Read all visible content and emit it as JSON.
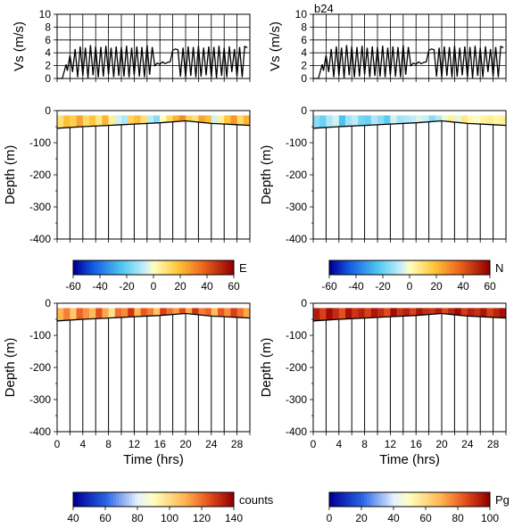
{
  "figure_label": "b24",
  "chart_data": [
    {
      "id": "vs-left",
      "type": "line",
      "title": "",
      "ylabel": "Vs (m/s)",
      "xlim": [
        0,
        30
      ],
      "ylim": [
        0,
        10
      ],
      "yticks": [
        0,
        2,
        4,
        6,
        8,
        10
      ],
      "grid": true,
      "series": [
        {
          "x": [
            0,
            0.8,
            1.4,
            1.6,
            2.0,
            2.4,
            2.8,
            3.2,
            3.6,
            4.0,
            4.4,
            4.8,
            5.2,
            5.6,
            6.0,
            6.4,
            6.8,
            7.2,
            7.6,
            8.0,
            8.4,
            8.8,
            9.2,
            9.6,
            10.0,
            10.4,
            10.8,
            11.2,
            11.6,
            12.0,
            12.4,
            12.8,
            13.2,
            13.6,
            14.0,
            14.4,
            14.8,
            15.2,
            15.6,
            16.0,
            16.4,
            16.8,
            17.2,
            17.6,
            18.0,
            18.4,
            18.8,
            19.2,
            19.6,
            20.0,
            20.4,
            20.8,
            21.2,
            21.6,
            22.0,
            22.4,
            22.8,
            23.2,
            23.6,
            24.0,
            24.4,
            24.8,
            25.2,
            25.6,
            26.0,
            26.4,
            26.8,
            27.2,
            27.6,
            28.0,
            28.4,
            28.8,
            29.2,
            29.6
          ],
          "y": [
            0,
            0,
            2.2,
            1.2,
            3.6,
            1.0,
            4.6,
            0.2,
            5.0,
            0.4,
            4.8,
            0.1,
            5.2,
            0.5,
            5.0,
            0.2,
            4.9,
            0.3,
            5.1,
            0.6,
            4.8,
            0.2,
            5.0,
            0.4,
            4.9,
            0.3,
            5.1,
            0.2,
            4.8,
            0.5,
            5.0,
            0.3,
            4.9,
            0.2,
            5.2,
            0.6,
            4.9,
            2.0,
            2.4,
            2.2,
            2.6,
            2.3,
            2.5,
            2.6,
            4.4,
            4.6,
            4.5,
            0.3,
            4.8,
            0.2,
            5.0,
            0.4,
            4.9,
            0.2,
            5.1,
            0.3,
            4.8,
            0.5,
            5.0,
            0.2,
            4.9,
            0.1,
            5.1,
            0.4,
            4.8,
            0.2,
            5.0,
            1.0,
            4.6,
            0.3,
            4.9,
            0.2,
            5.0,
            4.8
          ]
        }
      ]
    },
    {
      "id": "vs-right",
      "type": "line",
      "title": "",
      "ylabel": "Vs (m/s)",
      "xlim": [
        0,
        30
      ],
      "ylim": [
        0,
        10
      ],
      "yticks": [
        0,
        2,
        4,
        6,
        8,
        10
      ],
      "grid": true,
      "series": [
        {
          "x": [
            0,
            0.8,
            1.4,
            1.6,
            2.0,
            2.4,
            2.8,
            3.2,
            3.6,
            4.0,
            4.4,
            4.8,
            5.2,
            5.6,
            6.0,
            6.4,
            6.8,
            7.2,
            7.6,
            8.0,
            8.4,
            8.8,
            9.2,
            9.6,
            10.0,
            10.4,
            10.8,
            11.2,
            11.6,
            12.0,
            12.4,
            12.8,
            13.2,
            13.6,
            14.0,
            14.4,
            14.8,
            15.2,
            15.6,
            16.0,
            16.4,
            16.8,
            17.2,
            17.6,
            18.0,
            18.4,
            18.8,
            19.2,
            19.6,
            20.0,
            20.4,
            20.8,
            21.2,
            21.6,
            22.0,
            22.4,
            22.8,
            23.2,
            23.6,
            24.0,
            24.4,
            24.8,
            25.2,
            25.6,
            26.0,
            26.4,
            26.8,
            27.2,
            27.6,
            28.0,
            28.4,
            28.8,
            29.2,
            29.6
          ],
          "y": [
            0,
            0,
            2.2,
            1.2,
            3.6,
            1.0,
            4.6,
            0.2,
            5.0,
            0.4,
            4.8,
            0.1,
            5.2,
            0.5,
            5.0,
            0.2,
            4.9,
            0.3,
            5.1,
            0.6,
            4.8,
            0.2,
            5.0,
            0.4,
            4.9,
            0.3,
            5.1,
            0.2,
            4.8,
            0.5,
            5.0,
            0.3,
            4.9,
            0.2,
            5.2,
            0.6,
            4.9,
            2.0,
            2.4,
            2.2,
            2.6,
            2.3,
            2.5,
            2.6,
            4.4,
            4.6,
            4.5,
            0.3,
            4.8,
            0.2,
            5.0,
            0.4,
            4.9,
            0.2,
            5.1,
            0.3,
            4.8,
            0.5,
            5.0,
            0.2,
            4.9,
            0.1,
            5.1,
            0.4,
            4.8,
            0.2,
            5.0,
            1.0,
            4.6,
            0.3,
            4.9,
            0.2,
            5.0,
            4.8
          ]
        }
      ]
    },
    {
      "id": "depth-E",
      "type": "heatmap",
      "ylabel": "Depth (m)",
      "xlim": [
        0,
        30
      ],
      "ylim": [
        -400,
        0
      ],
      "yticks": [
        0,
        -100,
        -200,
        -300,
        -400
      ],
      "vertical_lines_x": [
        0,
        2,
        4,
        6,
        8,
        10,
        12,
        14,
        16,
        18,
        20,
        22,
        24,
        26,
        28
      ],
      "bottom_depth": {
        "x": [
          0,
          4,
          8,
          12,
          16,
          20,
          24,
          28,
          30
        ],
        "y": [
          -55,
          -50,
          -46,
          -42,
          -38,
          -32,
          -40,
          -44,
          -46
        ]
      },
      "band_top": -15,
      "color_variable": "E",
      "colorbar": {
        "label": "E",
        "range": [
          -60,
          60
        ],
        "ticks": [
          -60,
          -40,
          -20,
          0,
          20,
          40,
          60
        ]
      },
      "column_values": [
        10,
        20,
        15,
        25,
        12,
        18,
        8,
        22,
        5,
        -5,
        -10,
        14,
        20,
        10,
        -8,
        -15,
        0,
        12,
        22,
        30,
        15,
        10,
        25,
        20,
        -5,
        5,
        18,
        28,
        12,
        22
      ]
    },
    {
      "id": "depth-N",
      "type": "heatmap",
      "ylabel": "Depth (m)",
      "xlim": [
        0,
        30
      ],
      "ylim": [
        -400,
        0
      ],
      "yticks": [
        0,
        -100,
        -200,
        -300,
        -400
      ],
      "vertical_lines_x": [
        0,
        2,
        4,
        6,
        8,
        10,
        12,
        14,
        16,
        18,
        20,
        22,
        24,
        26,
        28
      ],
      "bottom_depth": {
        "x": [
          0,
          4,
          8,
          12,
          16,
          20,
          24,
          28,
          30
        ],
        "y": [
          -55,
          -50,
          -46,
          -42,
          -38,
          -32,
          -40,
          -44,
          -46
        ]
      },
      "band_top": -15,
      "color_variable": "N",
      "colorbar": {
        "label": "N",
        "range": [
          -60,
          60
        ],
        "ticks": [
          -60,
          -40,
          -20,
          0,
          20,
          40,
          60
        ]
      },
      "column_values": [
        -15,
        -20,
        -10,
        -5,
        -25,
        -12,
        -8,
        -18,
        -20,
        -10,
        -15,
        -22,
        -5,
        -12,
        -10,
        -8,
        -4,
        -6,
        -15,
        -10,
        -2,
        5,
        -3,
        8,
        2,
        -1,
        4,
        6,
        3,
        5
      ]
    },
    {
      "id": "depth-counts",
      "type": "heatmap",
      "ylabel": "Depth (m)",
      "xlabel": "Time (hrs)",
      "xlim": [
        0,
        30
      ],
      "xticks": [
        0,
        4,
        8,
        12,
        16,
        20,
        24,
        28
      ],
      "ylim": [
        -400,
        0
      ],
      "yticks": [
        0,
        -100,
        -200,
        -300,
        -400
      ],
      "vertical_lines_x": [
        0,
        2,
        4,
        6,
        8,
        10,
        12,
        14,
        16,
        18,
        20,
        22,
        24,
        26,
        28
      ],
      "bottom_depth": {
        "x": [
          0,
          4,
          8,
          12,
          16,
          20,
          24,
          28,
          30
        ],
        "y": [
          -55,
          -50,
          -46,
          -42,
          -38,
          -32,
          -40,
          -44,
          -46
        ]
      },
      "band_top": -15,
      "color_variable": "counts",
      "colorbar": {
        "label": "counts",
        "range": [
          40,
          140
        ],
        "ticks": [
          40,
          60,
          80,
          100,
          120,
          140
        ]
      },
      "column_values": [
        110,
        118,
        105,
        122,
        115,
        108,
        125,
        112,
        98,
        120,
        116,
        130,
        110,
        124,
        118,
        106,
        128,
        120,
        114,
        126,
        112,
        130,
        118,
        122,
        108,
        124,
        116,
        128,
        120,
        112
      ]
    },
    {
      "id": "depth-Pg",
      "type": "heatmap",
      "ylabel": "Depth (m)",
      "xlabel": "Time (hrs)",
      "xlim": [
        0,
        30
      ],
      "xticks": [
        0,
        4,
        8,
        12,
        16,
        20,
        24,
        28
      ],
      "ylim": [
        -400,
        0
      ],
      "yticks": [
        0,
        -100,
        -200,
        -300,
        -400
      ],
      "vertical_lines_x": [
        0,
        2,
        4,
        6,
        8,
        10,
        12,
        14,
        16,
        18,
        20,
        22,
        24,
        26,
        28
      ],
      "bottom_depth": {
        "x": [
          0,
          4,
          8,
          12,
          16,
          20,
          24,
          28,
          30
        ],
        "y": [
          -55,
          -50,
          -46,
          -42,
          -38,
          -32,
          -40,
          -44,
          -46
        ]
      },
      "band_top": -15,
      "color_variable": "Pg",
      "colorbar": {
        "label": "Pg",
        "range": [
          0,
          100
        ],
        "ticks": [
          0,
          20,
          40,
          60,
          80,
          100
        ]
      },
      "column_values": [
        95,
        88,
        98,
        92,
        85,
        97,
        90,
        94,
        88,
        96,
        92,
        86,
        98,
        90,
        94,
        88,
        96,
        92,
        90,
        95,
        87,
        93,
        98,
        89,
        94,
        91,
        96,
        88,
        93,
        97
      ]
    }
  ]
}
